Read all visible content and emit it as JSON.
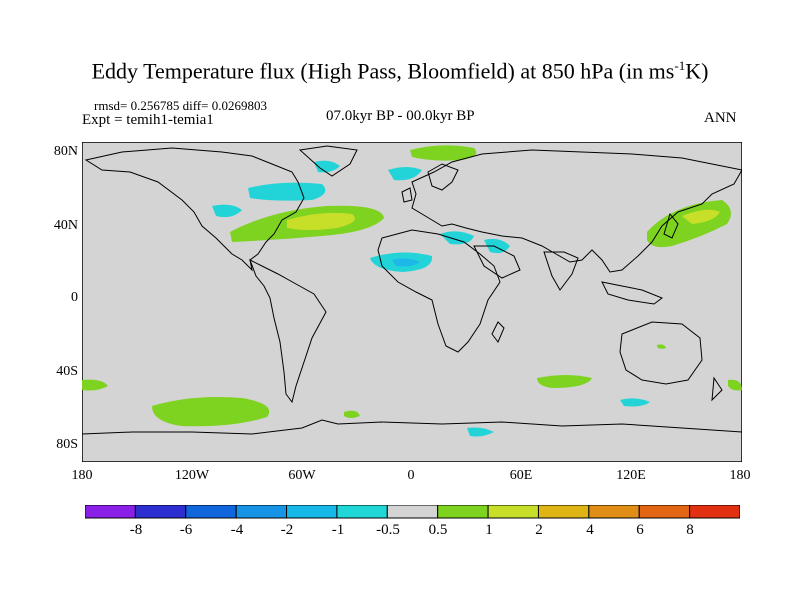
{
  "title": {
    "main": "Eddy Temperature flux (High Pass, Bloomfield) at 850 hPa (in ms",
    "sup": "-1",
    "tail": "K)"
  },
  "stats": "rmsd= 0.256785 diff= 0.0269803",
  "experiment": "Expt = temih1-temia1",
  "period": "07.0kyr BP - 00.0kyr BP",
  "season": "ANN",
  "map": {
    "projection": "equirectangular",
    "lon_range": [
      -180,
      180
    ],
    "lat_range": [
      -90,
      90
    ],
    "y_ticks": [
      "80N",
      "40N",
      "0",
      "40S",
      "80S"
    ],
    "x_ticks": [
      "180",
      "120W",
      "60W",
      "0",
      "60E",
      "120E",
      "180"
    ],
    "colors": {
      "background": "#d4d4d4",
      "positive_0_5_1": "#7ed321",
      "positive_1_2": "#c8df2a",
      "negative_0_5_1": "#22d4d8",
      "negative_1_2": "#1eb8e8",
      "coast": "#000000"
    }
  },
  "colorbar": {
    "colors": [
      "#8a1fe6",
      "#2d2ecf",
      "#0f66dd",
      "#1894e6",
      "#16b8e8",
      "#1fd7d6",
      "#d4d4d4",
      "#7ed321",
      "#c8df2a",
      "#dfb516",
      "#e08e15",
      "#e26514",
      "#e23012"
    ],
    "labels": [
      "-8",
      "-6",
      "-4",
      "-2",
      "-1",
      "-0.5",
      "0.5",
      "1",
      "2",
      "4",
      "6",
      "8"
    ]
  }
}
